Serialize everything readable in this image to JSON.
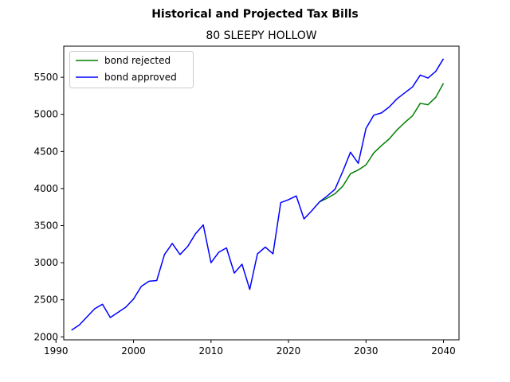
{
  "chart_data": {
    "type": "line",
    "suptitle": "Historical and Projected Tax Bills",
    "title": "80 SLEEPY HOLLOW",
    "xlabel": "",
    "ylabel": "",
    "xlim": [
      1991,
      2042
    ],
    "ylim": [
      1960,
      5920
    ],
    "x_ticks": [
      1990,
      2000,
      2010,
      2020,
      2030,
      2040
    ],
    "y_ticks": [
      2000,
      2500,
      3000,
      3500,
      4000,
      4500,
      5000,
      5500
    ],
    "grid": false,
    "legend_position": "upper left",
    "series": [
      {
        "name": "bond rejected",
        "color": "#008000",
        "x": [
          2024,
          2025,
          2026,
          2027,
          2028,
          2029,
          2030,
          2031,
          2032,
          2033,
          2034,
          2035,
          2036,
          2037,
          2038,
          2039,
          2040
        ],
        "y": [
          3820,
          3870,
          3930,
          4030,
          4200,
          4250,
          4320,
          4480,
          4580,
          4670,
          4790,
          4890,
          4980,
          5150,
          5130,
          5230,
          5420
        ]
      },
      {
        "name": "bond approved",
        "color": "#0000ff",
        "x": [
          1992,
          1993,
          1994,
          1995,
          1996,
          1997,
          1998,
          1999,
          2000,
          2001,
          2002,
          2003,
          2004,
          2005,
          2006,
          2007,
          2008,
          2009,
          2010,
          2011,
          2012,
          2013,
          2014,
          2015,
          2016,
          2017,
          2018,
          2019,
          2020,
          2021,
          2022,
          2023,
          2024,
          2025,
          2026,
          2027,
          2028,
          2029,
          2030,
          2031,
          2032,
          2033,
          2034,
          2035,
          2036,
          2037,
          2038,
          2039,
          2040
        ],
        "y": [
          2090,
          2160,
          2270,
          2380,
          2440,
          2260,
          2330,
          2400,
          2510,
          2680,
          2750,
          2760,
          3110,
          3260,
          3110,
          3220,
          3390,
          3510,
          3000,
          3140,
          3200,
          2860,
          2980,
          2640,
          3120,
          3210,
          3120,
          3810,
          3850,
          3900,
          3590,
          3700,
          3820,
          3900,
          3990,
          4230,
          4490,
          4340,
          4810,
          4990,
          5020,
          5100,
          5210,
          5290,
          5370,
          5530,
          5490,
          5580,
          5750
        ]
      }
    ]
  }
}
